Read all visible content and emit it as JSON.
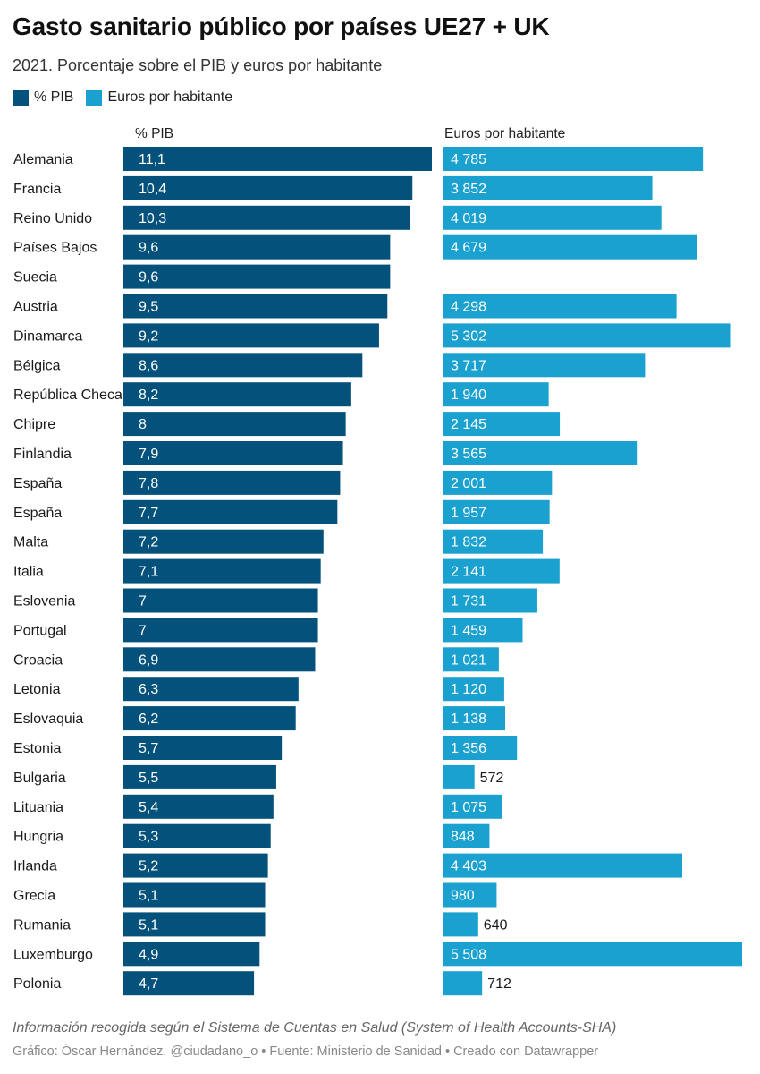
{
  "title": "Gasto sanitario público por países UE27 + UK",
  "subtitle": "2021. Porcentaje sobre el PIB y euros por habitante",
  "legend": [
    {
      "label": "% PIB",
      "color": "#04527b"
    },
    {
      "label": "Euros por habitante",
      "color": "#1aa1cf"
    }
  ],
  "footer": {
    "note": "Información recogida según el Sistema de Cuentas en Salud (System of Health Accounts-SHA)",
    "author": "Gráfico: Óscar Hernández. @ciudadano_o",
    "source": "Fuente: Ministerio de Sanidad",
    "tool": "Creado con Datawrapper"
  },
  "chart_data": {
    "type": "bar",
    "orientation": "horizontal",
    "categories": [
      "Alemania",
      "Francia",
      "Reino Unido",
      "Países Bajos",
      "Suecia",
      "Austria",
      "Dinamarca",
      "Bélgica",
      "República Checa",
      "Chipre",
      "Finlandia",
      "España",
      "España",
      "Malta",
      "Italia",
      "Eslovenia",
      "Portugal",
      "Croacia",
      "Letonia",
      "Eslovaquia",
      "Estonia",
      "Bulgaria",
      "Lituania",
      "Hungria",
      "Irlanda",
      "Grecia",
      "Rumania",
      "Luxemburgo",
      "Polonia"
    ],
    "series": [
      {
        "name": "% PIB",
        "color": "#04527b",
        "values": [
          11.1,
          10.4,
          10.3,
          9.6,
          9.6,
          9.5,
          9.2,
          8.6,
          8.2,
          8,
          7.9,
          7.8,
          7.7,
          7.2,
          7.1,
          7,
          7,
          6.9,
          6.3,
          6.2,
          5.7,
          5.5,
          5.4,
          5.3,
          5.2,
          5.1,
          5.1,
          4.9,
          4.7
        ],
        "labels": [
          "11,1",
          "10,4",
          "10,3",
          "9,6",
          "9,6",
          "9,5",
          "9,2",
          "8,6",
          "8,2",
          "8",
          "7,9",
          "7,8",
          "7,7",
          "7,2",
          "7,1",
          "7",
          "7",
          "6,9",
          "6,3",
          "6,2",
          "5,7",
          "5,5",
          "5,4",
          "5,3",
          "5,2",
          "5,1",
          "5,1",
          "4,9",
          "4,7"
        ],
        "xlim": [
          0,
          11.1
        ]
      },
      {
        "name": "Euros por habitante",
        "color": "#1aa1cf",
        "values": [
          4785,
          3852,
          4019,
          4679,
          null,
          4298,
          5302,
          3717,
          1940,
          2145,
          3565,
          2001,
          1957,
          1832,
          2141,
          1731,
          1459,
          1021,
          1120,
          1138,
          1356,
          572,
          1075,
          848,
          4403,
          980,
          640,
          5508,
          712
        ],
        "labels": [
          "4 785",
          "3 852",
          "4 019",
          "4 679",
          "",
          "4 298",
          "5 302",
          "3 717",
          "1 940",
          "2 145",
          "3 565",
          "2 001",
          "1 957",
          "1 832",
          "2 141",
          "1 731",
          "1 459",
          "1 021",
          "1 120",
          "1 138",
          "1 356",
          "572",
          "1 075",
          "848",
          "4 403",
          "980",
          "640",
          "5 508",
          "712"
        ],
        "xlim": [
          0,
          5508
        ]
      }
    ],
    "column_headers": [
      "% PIB",
      "Euros por habitante"
    ]
  }
}
